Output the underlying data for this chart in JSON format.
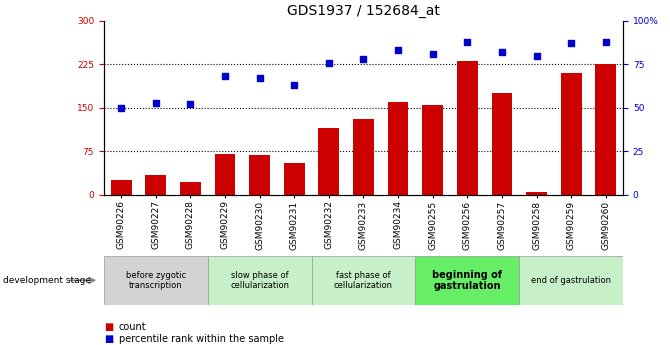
{
  "title": "GDS1937 / 152684_at",
  "samples": [
    "GSM90226",
    "GSM90227",
    "GSM90228",
    "GSM90229",
    "GSM90230",
    "GSM90231",
    "GSM90232",
    "GSM90233",
    "GSM90234",
    "GSM90255",
    "GSM90256",
    "GSM90257",
    "GSM90258",
    "GSM90259",
    "GSM90260"
  ],
  "counts": [
    25,
    35,
    22,
    70,
    68,
    55,
    115,
    130,
    160,
    155,
    230,
    175,
    5,
    210,
    225
  ],
  "percentiles": [
    50,
    53,
    52,
    68,
    67,
    63,
    76,
    78,
    83,
    81,
    88,
    82,
    80,
    87,
    88
  ],
  "bar_color": "#cc0000",
  "dot_color": "#0000cc",
  "ylim_left": [
    0,
    300
  ],
  "ylim_right": [
    0,
    100
  ],
  "yticks_left": [
    0,
    75,
    150,
    225,
    300
  ],
  "ytick_labels_left": [
    "0",
    "75",
    "150",
    "225",
    "300"
  ],
  "yticks_right": [
    0,
    25,
    50,
    75,
    100
  ],
  "ytick_labels_right": [
    "0",
    "25",
    "50",
    "75",
    "100%"
  ],
  "hlines": [
    75,
    150,
    225
  ],
  "stages": [
    {
      "label": "before zygotic\ntranscription",
      "start": 0,
      "end": 3,
      "color": "#d3d3d3",
      "bold": false
    },
    {
      "label": "slow phase of\ncellularization",
      "start": 3,
      "end": 6,
      "color": "#c8f0c8",
      "bold": false
    },
    {
      "label": "fast phase of\ncellularization",
      "start": 6,
      "end": 9,
      "color": "#c8f0c8",
      "bold": false
    },
    {
      "label": "beginning of\ngastrulation",
      "start": 9,
      "end": 12,
      "color": "#66ee66",
      "bold": true
    },
    {
      "label": "end of gastrulation",
      "start": 12,
      "end": 15,
      "color": "#c8f0c8",
      "bold": false
    }
  ],
  "dev_stage_label": "development stage",
  "legend_count_label": "count",
  "legend_pct_label": "percentile rank within the sample",
  "title_fontsize": 10,
  "tick_label_fontsize": 6.5,
  "stage_fontsize": 6,
  "stage_bold_fontsize": 7
}
